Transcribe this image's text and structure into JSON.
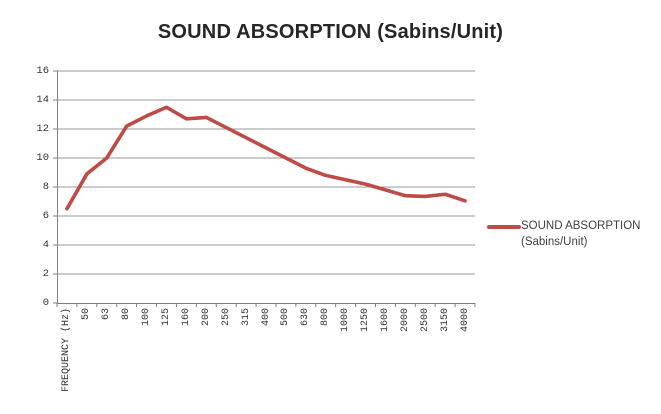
{
  "title": "SOUND ABSORPTION (Sabins/Unit)",
  "legend": {
    "label": "SOUND ABSORPTION (Sabins/Unit)"
  },
  "colors": {
    "line": "#be4b48",
    "grid": "#9a9a9a",
    "axis": "#7f7f7f",
    "tick_text": "#333333",
    "title_text": "#262626",
    "background": "#ffffff"
  },
  "chart_data": {
    "type": "line",
    "title": "SOUND ABSORPTION (Sabins/Unit)",
    "categories": [
      "FREQUENCY (Hz)",
      "50",
      "63",
      "80",
      "100",
      "125",
      "160",
      "200",
      "250",
      "315",
      "400",
      "500",
      "630",
      "800",
      "1000",
      "1250",
      "1600",
      "2000",
      "2500",
      "3150",
      "4000"
    ],
    "series": [
      {
        "name": "SOUND ABSORPTION (Sabins/Unit)",
        "color": "#be4b48",
        "values": [
          6.5,
          8.9,
          10,
          12.2,
          12.9,
          13.5,
          12.7,
          12.8,
          12.1,
          11.4,
          10.7,
          10,
          9.3,
          8.8,
          8.5,
          8.2,
          7.8,
          7.4,
          7.35,
          7.5,
          7.05
        ]
      }
    ],
    "xlabel": "",
    "ylabel": "",
    "ylim": [
      0,
      16
    ],
    "ytick_step": 2,
    "yticks": [
      0,
      2,
      4,
      6,
      8,
      10,
      12,
      14,
      16
    ],
    "grid": true,
    "legend_position": "right",
    "x_tick_label_rotation": 90
  }
}
